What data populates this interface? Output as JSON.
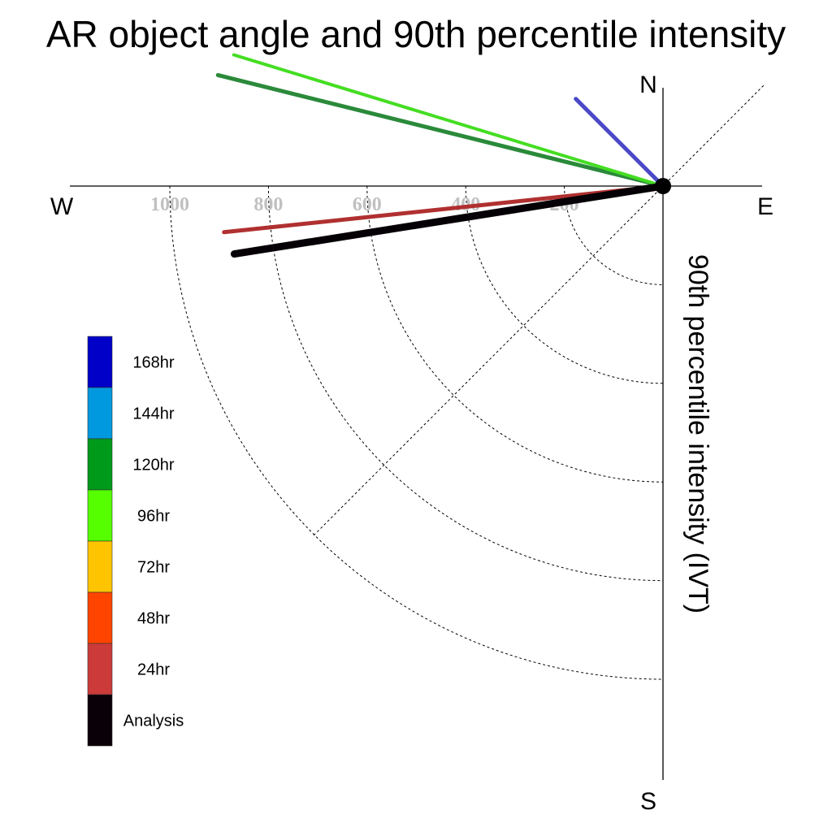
{
  "chart_data": {
    "type": "polar-vector",
    "title": "AR object angle and 90th percentile intensity",
    "radial_label": "90th percentile intensity (IVT)",
    "compass": {
      "north": "N",
      "south": "S",
      "east": "E",
      "west": "W"
    },
    "radial_ticks": [
      200,
      400,
      600,
      800,
      1000
    ],
    "radial_max": 1000,
    "series": [
      {
        "name": "168hr",
        "color": "#0000c8",
        "angle_deg": 135,
        "intensity": 250,
        "line_color": "#4a4ac8",
        "width": 5
      },
      {
        "name": "144hr",
        "color": "#0099e0"
      },
      {
        "name": "120hr",
        "color": "#009a1a",
        "angle_deg": 166,
        "intensity": 930,
        "line_color": "#2a8a3a",
        "width": 5
      },
      {
        "name": "96hr",
        "color": "#55ff00",
        "angle_deg": 163,
        "intensity": 910,
        "line_color": "#44dd22",
        "width": 4
      },
      {
        "name": "72hr",
        "color": "#ffc400"
      },
      {
        "name": "48hr",
        "color": "#ff4400"
      },
      {
        "name": "24hr",
        "color": "#cc3a3a",
        "angle_deg": 186,
        "intensity": 895,
        "line_color": "#b03030",
        "width": 5
      },
      {
        "name": "Analysis",
        "color": "#0a0008",
        "angle_deg": 189,
        "intensity": 880,
        "line_color": "#050005",
        "width": 9
      }
    ]
  }
}
